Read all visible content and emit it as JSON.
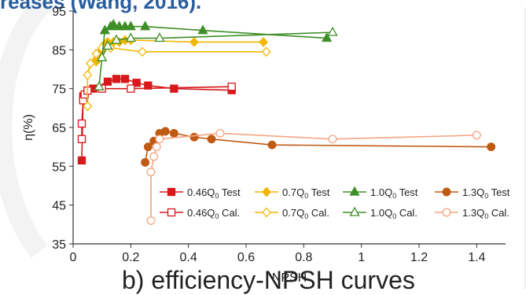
{
  "slide": {
    "heading_fragment": "reases (Wang, 2016).",
    "caption_fragment": "b) efficiency-NPSH curves"
  },
  "chart_data": {
    "type": "line",
    "title": "",
    "xlabel": "NPSH",
    "ylabel": "η(%)",
    "xlim": [
      0,
      1.5
    ],
    "ylim": [
      35,
      95
    ],
    "xticks": [
      "0",
      "0.2",
      "0.4",
      "0.6",
      "0.8",
      "1",
      "1.2",
      "1.4"
    ],
    "yticks": [
      "35",
      "45",
      "55",
      "65",
      "75",
      "85",
      "95"
    ],
    "grid": false,
    "legend_position": "bottom-inside",
    "series": [
      {
        "name": "0.46Q0 Test",
        "label_main": "0.46Q",
        "label_sub": "0",
        "label_tail": " Test",
        "color": "#d7191c",
        "marker": "square",
        "filled": true,
        "x": [
          0.03,
          0.035,
          0.05,
          0.07,
          0.12,
          0.15,
          0.18,
          0.22,
          0.26,
          0.35,
          0.55
        ],
        "y": [
          56.5,
          73.0,
          74.5,
          75.0,
          76.8,
          77.5,
          77.5,
          76.5,
          75.8,
          75.0,
          74.6
        ]
      },
      {
        "name": "0.46Q0 Cal.",
        "label_main": "0.46Q",
        "label_sub": "0",
        "label_tail": " Cal.",
        "color": "#d7191c",
        "marker": "square",
        "filled": false,
        "x": [
          0.03,
          0.03,
          0.035,
          0.04,
          0.05,
          0.1,
          0.2,
          0.55
        ],
        "y": [
          62.0,
          66.0,
          72.0,
          73.5,
          74.5,
          75.0,
          75.0,
          75.5
        ]
      },
      {
        "name": "0.7Q0 Test",
        "label_main": "0.7Q",
        "label_sub": "0",
        "label_tail": " Test",
        "color": "#f2b705",
        "marker": "diamond",
        "filled": true,
        "x": [
          0.08,
          0.1,
          0.11,
          0.12,
          0.14,
          0.16,
          0.18,
          0.2,
          0.42,
          0.66
        ],
        "y": [
          82.0,
          85.0,
          86.5,
          87.0,
          87.0,
          87.0,
          87.5,
          87.5,
          87.0,
          87.0
        ]
      },
      {
        "name": "0.7Q0 Cal.",
        "label_main": "0.7Q",
        "label_sub": "0",
        "label_tail": " Cal.",
        "color": "#f2b705",
        "marker": "diamond",
        "filled": false,
        "x": [
          0.05,
          0.05,
          0.06,
          0.08,
          0.1,
          0.13,
          0.24,
          0.67
        ],
        "y": [
          70.5,
          78.5,
          81.5,
          84.0,
          85.5,
          85.5,
          84.5,
          84.5
        ]
      },
      {
        "name": "1.0Q0 Test",
        "label_main": "1.0Q",
        "label_sub": "0",
        "label_tail": " Test",
        "color": "#3f8f29",
        "marker": "triangle",
        "filled": true,
        "x": [
          0.1,
          0.11,
          0.13,
          0.14,
          0.16,
          0.18,
          0.2,
          0.25,
          0.45,
          0.88
        ],
        "y": [
          83.0,
          90.0,
          91.0,
          91.5,
          91.0,
          91.0,
          91.0,
          91.0,
          90.0,
          88.0
        ]
      },
      {
        "name": "1.0Q0 Cal.",
        "label_main": "1.0Q",
        "label_sub": "0",
        "label_tail": " Cal.",
        "color": "#3f8f29",
        "marker": "triangle",
        "filled": false,
        "x": [
          0.09,
          0.1,
          0.12,
          0.15,
          0.2,
          0.3,
          0.9
        ],
        "y": [
          75.5,
          83.0,
          86.0,
          87.5,
          88.0,
          88.0,
          89.5
        ]
      },
      {
        "name": "1.3Q0 Test",
        "label_main": "1.3Q",
        "label_sub": "0",
        "label_tail": " Test",
        "color": "#c05a12",
        "marker": "circle",
        "filled": true,
        "x": [
          0.25,
          0.26,
          0.28,
          0.3,
          0.32,
          0.35,
          0.42,
          0.48,
          0.69,
          1.45
        ],
        "y": [
          56.0,
          60.0,
          61.5,
          63.5,
          64.0,
          63.5,
          62.5,
          62.0,
          60.5,
          60.0
        ]
      },
      {
        "name": "1.3Q0 Cal.",
        "label_main": "1.3Q",
        "label_sub": "0",
        "label_tail": " Cal.",
        "color": "#f4a582",
        "marker": "circle",
        "filled": false,
        "x": [
          0.27,
          0.27,
          0.28,
          0.29,
          0.3,
          0.51,
          0.9,
          1.4
        ],
        "y": [
          41.0,
          53.5,
          57.5,
          60.0,
          62.0,
          63.5,
          62.0,
          63.0
        ]
      }
    ]
  }
}
